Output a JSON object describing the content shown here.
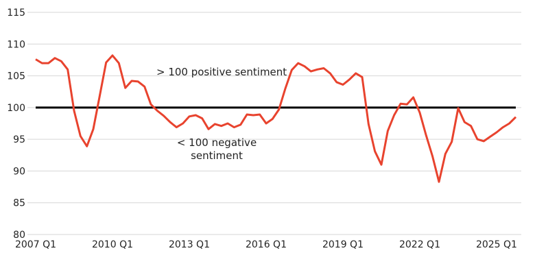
{
  "chart_data": {
    "type": "line",
    "title": "",
    "xlabel": "",
    "ylabel": "",
    "ylim": [
      80,
      115
    ],
    "yticks": [
      "80",
      "85",
      "90",
      "95",
      "100",
      "105",
      "110",
      "115"
    ],
    "xticks": [
      "2007 Q1",
      "2010 Q1",
      "2013 Q1",
      "2016 Q1",
      "2019 Q1",
      "2022 Q1",
      "2025 Q1"
    ],
    "grid": "horizontal",
    "reference_line": 100,
    "start_quarter": "2007 Q1",
    "series": [
      {
        "color": "#e8432e",
        "values": [
          107.6,
          107.0,
          107.0,
          107.8,
          107.3,
          106.0,
          99.5,
          95.5,
          93.9,
          96.6,
          101.8,
          107.1,
          108.2,
          107.0,
          103.1,
          104.2,
          104.1,
          103.3,
          100.5,
          99.5,
          98.7,
          97.7,
          96.9,
          97.5,
          98.6,
          98.8,
          98.3,
          96.6,
          97.4,
          97.1,
          97.5,
          96.9,
          97.3,
          98.9,
          98.8,
          98.9,
          97.5,
          98.2,
          99.7,
          103.0,
          105.9,
          107.0,
          106.5,
          105.7,
          106.0,
          106.2,
          105.4,
          104.0,
          103.6,
          104.4,
          105.4,
          104.8,
          97.4,
          93.1,
          91.0,
          96.3,
          98.8,
          100.6,
          100.5,
          101.6,
          99.2,
          95.6,
          92.3,
          88.3,
          92.7,
          94.6,
          99.9,
          97.7,
          97.1,
          95.0,
          94.7,
          95.4,
          96.1,
          96.9,
          97.5,
          98.5
        ]
      }
    ],
    "annotations": {
      "positive": "> 100 positive sentiment",
      "negative_line1": "< 100 negative",
      "negative_line2": "sentiment"
    }
  }
}
